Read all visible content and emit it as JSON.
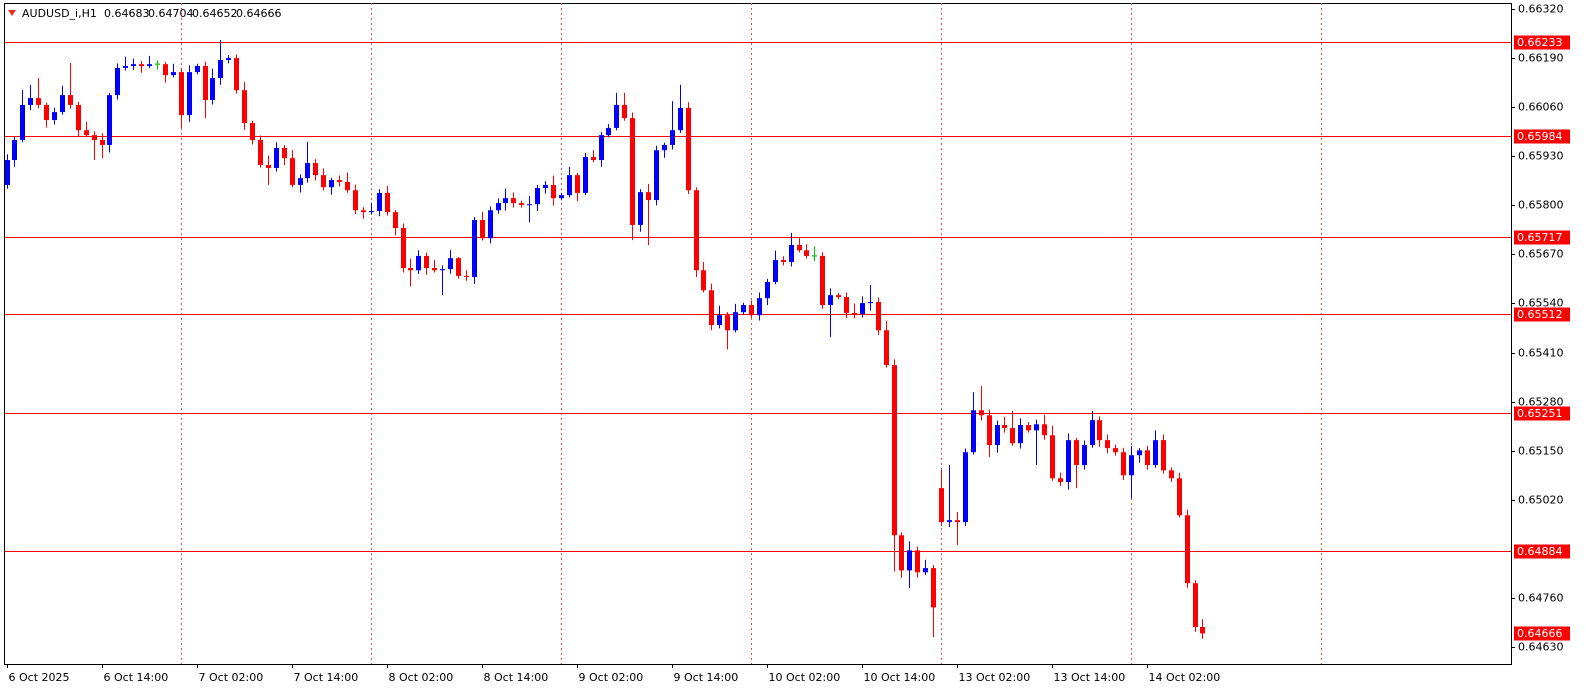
{
  "chart_data": {
    "type": "candlestick",
    "title": "AUDUSD_i,H1",
    "categories": [
      "6 Oct 2025",
      null,
      null,
      null,
      null,
      null,
      null,
      null,
      null,
      null,
      null,
      null,
      "6 Oct 14:00",
      null,
      null,
      null,
      null,
      null,
      null,
      null,
      null,
      null,
      null,
      null,
      "7 Oct 02:00",
      null,
      null,
      null,
      null,
      null,
      null,
      null,
      null,
      null,
      null,
      null,
      "7 Oct 14:00",
      null,
      null,
      null,
      null,
      null,
      null,
      null,
      null,
      null,
      null,
      null,
      "8 Oct 02:00",
      null,
      null,
      null,
      null,
      null,
      null,
      null,
      null,
      null,
      null,
      null,
      "8 Oct 14:00",
      null,
      null,
      null,
      null,
      null,
      null,
      null,
      null,
      null,
      null,
      null,
      "9 Oct 02:00",
      null,
      null,
      null,
      null,
      null,
      null,
      null,
      null,
      null,
      null,
      null,
      "9 Oct 14:00",
      null,
      null,
      null,
      null,
      null,
      null,
      null,
      null,
      null,
      null,
      null,
      "10 Oct 02:00",
      null,
      null,
      null,
      null,
      null,
      null,
      null,
      null,
      null,
      null,
      null,
      "10 Oct 14:00",
      null,
      null,
      null,
      null,
      null,
      null,
      null,
      null,
      null,
      null,
      null,
      "13 Oct 02:00",
      null,
      null,
      null,
      null,
      null,
      null,
      null,
      null,
      null,
      null,
      null,
      "13 Oct 14:00",
      null,
      null,
      null,
      null,
      null,
      null,
      null,
      null,
      null,
      null,
      null,
      "14 Oct 02:00",
      null,
      null,
      null,
      null,
      null,
      null,
      null
    ],
    "open": [
      0.65854,
      0.6592,
      0.65973,
      0.66066,
      0.66084,
      0.66066,
      0.66026,
      0.66047,
      0.66092,
      0.66066,
      0.65999,
      0.65986,
      0.65973,
      0.6596,
      0.66092,
      0.66164,
      0.66169,
      0.66174,
      0.66169,
      0.66174,
      0.66174,
      0.66145,
      0.66153,
      0.66039,
      0.66153,
      0.66169,
      0.66079,
      0.66137,
      0.66185,
      0.6619,
      0.66105,
      0.66018,
      0.65973,
      0.65907,
      0.65899,
      0.65952,
      0.65925,
      0.65854,
      0.65872,
      0.65912,
      0.6588,
      0.65848,
      0.65867,
      0.65862,
      0.6584,
      0.65787,
      0.65782,
      0.65785,
      0.65833,
      0.65782,
      0.6574,
      0.65634,
      0.65628,
      0.65666,
      0.65634,
      0.65628,
      0.65631,
      0.6566,
      0.65613,
      0.6561,
      0.65761,
      0.65713,
      0.65787,
      0.65806,
      0.65819,
      0.65806,
      0.65801,
      0.65803,
      0.65846,
      0.65854,
      0.65819,
      0.65827,
      0.6588,
      0.65833,
      0.65928,
      0.6592,
      0.65986,
      0.66005,
      0.66066,
      0.66031,
      0.65748,
      0.65835,
      0.65814,
      0.65946,
      0.6596,
      0.65999,
      0.66058,
      0.6584,
      0.65628,
      0.65575,
      0.65483,
      0.65509,
      0.65469,
      0.65517,
      0.65536,
      0.65509,
      0.65554,
      0.65597,
      0.65655,
      0.6565,
      0.65695,
      0.65681,
      0.65666,
      0.65666,
      0.65536,
      0.65562,
      0.65557,
      0.65515,
      0.65512,
      0.65541,
      0.65544,
      0.65469,
      0.65377,
      0.64926,
      0.64833,
      0.64886,
      0.64828,
      0.64839,
      0.65051,
      0.64961,
      0.64966,
      0.64961,
      0.65146,
      0.65257,
      0.65244,
      0.65165,
      0.65218,
      0.6521,
      0.6517,
      0.65218,
      0.65204,
      0.6522,
      0.65191,
      0.65077,
      0.65067,
      0.65178,
      0.65112,
      0.65165,
      0.65231,
      0.65178,
      0.65157,
      0.65146,
      0.65085,
      0.65138,
      0.65151,
      0.65112,
      0.65178,
      0.65098,
      0.65077,
      0.64979,
      0.64799,
      0.64683
    ],
    "high": [
      0.65935,
      0.65981,
      0.66106,
      0.66119,
      0.66137,
      0.66072,
      0.66059,
      0.66117,
      0.66177,
      0.66074,
      0.66021,
      0.65996,
      0.65991,
      0.66098,
      0.66176,
      0.66194,
      0.66189,
      0.66182,
      0.66196,
      0.66184,
      0.6618,
      0.66175,
      0.66163,
      0.66171,
      0.66175,
      0.66181,
      0.66162,
      0.66238,
      0.66198,
      0.662,
      0.66127,
      0.66024,
      0.65985,
      0.65932,
      0.65967,
      0.6596,
      0.65947,
      0.65882,
      0.65968,
      0.65922,
      0.65898,
      0.65873,
      0.65879,
      0.65887,
      0.65855,
      0.65795,
      0.65807,
      0.65843,
      0.65851,
      0.65788,
      0.65752,
      0.65659,
      0.65681,
      0.65674,
      0.65656,
      0.65641,
      0.65682,
      0.65663,
      0.65628,
      0.65769,
      0.65783,
      0.65797,
      0.65818,
      0.65844,
      0.65834,
      0.65812,
      0.65825,
      0.65854,
      0.65864,
      0.65879,
      0.65833,
      0.65902,
      0.65886,
      0.65939,
      0.65946,
      0.65994,
      0.66015,
      0.66098,
      0.66098,
      0.66046,
      0.65843,
      0.65857,
      0.65958,
      0.65966,
      0.66076,
      0.66119,
      0.66073,
      0.65848,
      0.6565,
      0.65593,
      0.65534,
      0.65517,
      0.65539,
      0.65542,
      0.65548,
      0.65569,
      0.65605,
      0.6568,
      0.65665,
      0.65727,
      0.65713,
      0.65697,
      0.65691,
      0.65676,
      0.6558,
      0.65568,
      0.65569,
      0.6554,
      0.65559,
      0.65589,
      0.65556,
      0.65494,
      0.65392,
      0.64934,
      0.6491,
      0.64896,
      0.64861,
      0.64847,
      0.65099,
      0.65112,
      0.64988,
      0.65156,
      0.65305,
      0.65321,
      0.65259,
      0.6523,
      0.6524,
      0.65255,
      0.65236,
      0.65226,
      0.65232,
      0.65245,
      0.65216,
      0.65092,
      0.65196,
      0.65184,
      0.65177,
      0.65256,
      0.65241,
      0.65193,
      0.65166,
      0.65158,
      0.65163,
      0.65157,
      0.65163,
      0.65204,
      0.65193,
      0.65106,
      0.65092,
      0.64994,
      0.64807,
      0.64704
    ],
    "low": [
      0.65844,
      0.65902,
      0.65967,
      0.66052,
      0.66057,
      0.66006,
      0.66014,
      0.6604,
      0.66056,
      0.65981,
      0.6598,
      0.6592,
      0.65925,
      0.6594,
      0.6608,
      0.66157,
      0.66159,
      0.66151,
      0.66163,
      0.6616,
      0.66125,
      0.66139,
      0.66005,
      0.66021,
      0.66147,
      0.66031,
      0.66067,
      0.66119,
      0.66176,
      0.66096,
      0.66,
      0.65961,
      0.659,
      0.65854,
      0.65889,
      0.65907,
      0.65848,
      0.65834,
      0.6586,
      0.65866,
      0.65839,
      0.65828,
      0.6585,
      0.65833,
      0.65777,
      0.65764,
      0.65776,
      0.65771,
      0.65773,
      0.6572,
      0.65622,
      0.65585,
      0.65618,
      0.65616,
      0.65622,
      0.65562,
      0.65619,
      0.65606,
      0.656,
      0.65592,
      0.65707,
      0.65699,
      0.65778,
      0.65786,
      0.65794,
      0.65794,
      0.65755,
      0.65785,
      0.65831,
      0.65799,
      0.65813,
      0.65821,
      0.65811,
      0.65827,
      0.65914,
      0.65902,
      0.6598,
      0.65999,
      0.66024,
      0.65708,
      0.6573,
      0.65695,
      0.658,
      0.65926,
      0.65948,
      0.65992,
      0.6583,
      0.6561,
      0.65569,
      0.65469,
      0.65474,
      0.65418,
      0.65463,
      0.6551,
      0.65502,
      0.65495,
      0.65536,
      0.65591,
      0.65641,
      0.65638,
      0.65675,
      0.65659,
      0.65652,
      0.65526,
      0.65451,
      0.65551,
      0.65501,
      0.65501,
      0.65503,
      0.65521,
      0.65457,
      0.6537,
      0.6483,
      0.64813,
      0.64786,
      0.64814,
      0.64821,
      0.64656,
      0.64951,
      0.64948,
      0.649,
      0.64951,
      0.6514,
      0.6523,
      0.65133,
      0.65145,
      0.65198,
      0.65163,
      0.65156,
      0.65198,
      0.65112,
      0.65179,
      0.6507,
      0.65057,
      0.65047,
      0.65051,
      0.651,
      0.65158,
      0.6516,
      0.65143,
      0.65137,
      0.65072,
      0.65024,
      0.65118,
      0.651,
      0.65105,
      0.65089,
      0.65067,
      0.64973,
      0.64787,
      0.6467,
      0.64652
    ],
    "close": [
      0.6592,
      0.65973,
      0.66066,
      0.66084,
      0.66066,
      0.66026,
      0.66047,
      0.66092,
      0.66066,
      0.65999,
      0.65986,
      0.65973,
      0.6596,
      0.66092,
      0.66164,
      0.66169,
      0.66174,
      0.66169,
      0.66174,
      0.66174,
      0.66145,
      0.66153,
      0.66039,
      0.66153,
      0.66169,
      0.66079,
      0.66137,
      0.66185,
      0.6619,
      0.66105,
      0.66018,
      0.65973,
      0.65907,
      0.65899,
      0.65952,
      0.65925,
      0.65854,
      0.65872,
      0.65912,
      0.6588,
      0.65848,
      0.65867,
      0.65862,
      0.6584,
      0.65787,
      0.65782,
      0.65785,
      0.65833,
      0.65782,
      0.6574,
      0.65634,
      0.65628,
      0.65666,
      0.65634,
      0.65628,
      0.65631,
      0.6566,
      0.65613,
      0.6561,
      0.65761,
      0.65713,
      0.65787,
      0.65806,
      0.65819,
      0.65806,
      0.65801,
      0.65803,
      0.65846,
      0.65854,
      0.65819,
      0.65827,
      0.6588,
      0.65833,
      0.65928,
      0.6592,
      0.65986,
      0.66005,
      0.66066,
      0.66031,
      0.65748,
      0.65835,
      0.65814,
      0.65946,
      0.6596,
      0.65999,
      0.66058,
      0.6584,
      0.65628,
      0.65575,
      0.65483,
      0.65509,
      0.65469,
      0.65517,
      0.65536,
      0.65509,
      0.65554,
      0.65597,
      0.65655,
      0.6565,
      0.65695,
      0.65681,
      0.65666,
      0.65666,
      0.65536,
      0.65562,
      0.65557,
      0.65515,
      0.65512,
      0.65541,
      0.65544,
      0.65469,
      0.65377,
      0.64926,
      0.64833,
      0.64886,
      0.64828,
      0.64839,
      0.64735,
      0.64961,
      0.64966,
      0.64961,
      0.65146,
      0.65257,
      0.65244,
      0.65165,
      0.65218,
      0.6521,
      0.6517,
      0.65218,
      0.65204,
      0.6522,
      0.65191,
      0.65077,
      0.65067,
      0.65178,
      0.65112,
      0.65165,
      0.65231,
      0.65178,
      0.65157,
      0.65146,
      0.65085,
      0.65138,
      0.65151,
      0.65112,
      0.65178,
      0.65098,
      0.65077,
      0.64979,
      0.64799,
      0.64683,
      0.64666
    ],
    "ylim": [
      0.64585,
      0.66336
    ],
    "yticks": [
      {
        "value": 0.6632,
        "label": "0.66320"
      },
      {
        "value": 0.6619,
        "label": "0.66190"
      },
      {
        "value": 0.6606,
        "label": "0.66060"
      },
      {
        "value": 0.6593,
        "label": "0.65930"
      },
      {
        "value": 0.658,
        "label": "0.65800"
      },
      {
        "value": 0.6567,
        "label": "0.65670"
      },
      {
        "value": 0.6554,
        "label": "0.65540"
      },
      {
        "value": 0.6541,
        "label": "0.65410"
      },
      {
        "value": 0.6528,
        "label": "0.65280"
      },
      {
        "value": 0.6515,
        "label": "0.65150"
      },
      {
        "value": 0.6502,
        "label": "0.65020"
      },
      {
        "value": 0.6476,
        "label": "0.64760"
      },
      {
        "value": 0.6463,
        "label": "0.64630"
      }
    ],
    "levels": [
      0.66233,
      0.65984,
      0.65717,
      0.65512,
      0.65251,
      0.64884
    ],
    "bull_color": "#0000ff",
    "bear_color": "#ff0000",
    "doji_color": "#00c000",
    "level_color": "#ff0000",
    "grid": true
  }
}
